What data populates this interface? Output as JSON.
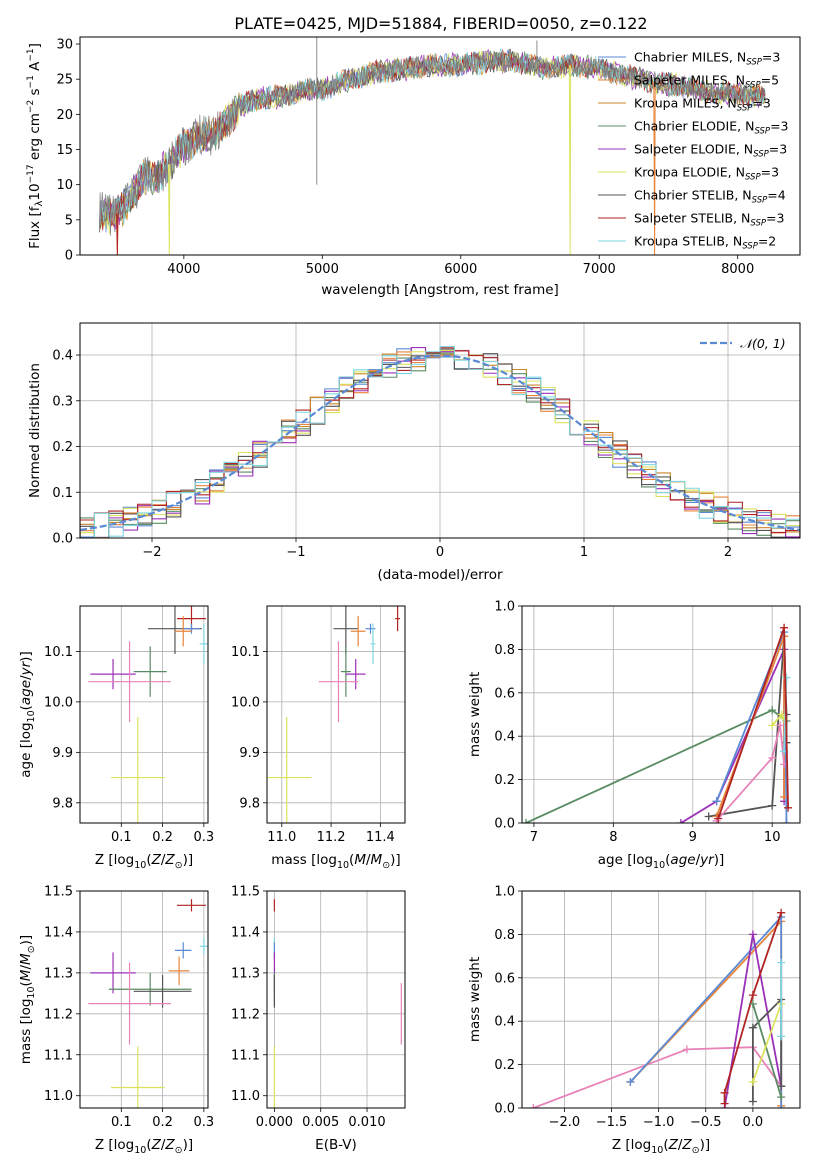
{
  "title": "PLATE=0425, MJD=51884, FIBERID=0050, z=0.122",
  "colors": {
    "Chabrier MILES": "#5b8ad4",
    "Salpeter MILES": "#e8843a",
    "Kroupa MILES": "#c9882a",
    "Chabrier ELODIE": "#5a8c63",
    "Salpeter ELODIE": "#9b30b8",
    "Kroupa ELODIE": "#dbe35e",
    "Chabrier STELIB": "#555555",
    "Salpeter STELIB": "#b02424",
    "Kroupa STELIB": "#7fd6e0",
    "pink": "#e783b8",
    "normal": "#5b8ad4"
  },
  "chart_data": [
    {
      "id": "spectrum",
      "type": "line",
      "xlabel": "wavelength [Angstrom, rest frame]",
      "ylabel": "Flux [f",
      "xlim": [
        3250,
        8450
      ],
      "ylim": [
        0,
        31
      ],
      "xticks": [
        4000,
        5000,
        6000,
        7000,
        8000
      ],
      "yticks": [
        0,
        5,
        10,
        15,
        20,
        25,
        30
      ],
      "continuum": [
        [
          3400,
          6
        ],
        [
          3500,
          5.5
        ],
        [
          3600,
          7.5
        ],
        [
          3700,
          11
        ],
        [
          3800,
          11
        ],
        [
          3900,
          13
        ],
        [
          4000,
          15.5
        ],
        [
          4100,
          17
        ],
        [
          4200,
          17
        ],
        [
          4300,
          19
        ],
        [
          4400,
          21
        ],
        [
          4500,
          22
        ],
        [
          4600,
          22.5
        ],
        [
          4700,
          22.5
        ],
        [
          4800,
          23
        ],
        [
          4900,
          23.5
        ],
        [
          5000,
          23.5
        ],
        [
          5200,
          25
        ],
        [
          5400,
          26
        ],
        [
          5600,
          26.5
        ],
        [
          5800,
          27
        ],
        [
          6000,
          27
        ],
        [
          6200,
          27.5
        ],
        [
          6400,
          27.5
        ],
        [
          6600,
          26.5
        ],
        [
          6800,
          27
        ],
        [
          7000,
          26.5
        ],
        [
          7200,
          25.5
        ],
        [
          7400,
          24.5
        ],
        [
          7600,
          24
        ],
        [
          7800,
          23
        ],
        [
          8000,
          23
        ],
        [
          8200,
          22.5
        ]
      ],
      "spikes": [
        [
          4960,
          10,
          32
        ],
        [
          6550,
          26,
          30.5
        ]
      ],
      "series": [
        {
          "name": "Chabrier MILES",
          "nssp": "3"
        },
        {
          "name": "Salpeter MILES",
          "nssp": "5"
        },
        {
          "name": "Kroupa MILES",
          "nssp": "3"
        },
        {
          "name": "Chabrier ELODIE",
          "nssp": "3"
        },
        {
          "name": "Salpeter ELODIE",
          "nssp": "3"
        },
        {
          "name": "Kroupa ELODIE",
          "nssp": "3"
        },
        {
          "name": "Chabrier STELIB",
          "nssp": "4"
        },
        {
          "name": "Salpeter STELIB",
          "nssp": "3"
        },
        {
          "name": "Kroupa STELIB",
          "nssp": "2"
        }
      ],
      "drops": [
        {
          "series": "Salpeter MILES",
          "x": 3520
        },
        {
          "series": "Salpeter STELIB",
          "x": 3520
        },
        {
          "series": "Kroupa ELODIE",
          "x": 3895
        },
        {
          "series": "Kroupa ELODIE",
          "x": 6790
        },
        {
          "series": "Salpeter MILES",
          "x": 7400
        }
      ]
    },
    {
      "id": "residuals",
      "type": "histogram",
      "xlabel": "(data-model)/error",
      "ylabel": "Normed distribution",
      "xlim": [
        -2.5,
        2.5
      ],
      "ylim": [
        0,
        0.47
      ],
      "xticks": [
        -2,
        -1,
        0,
        1,
        2
      ],
      "xticklabels": [
        "−2",
        "−1",
        "0",
        "1",
        "2"
      ],
      "yticks": [
        0,
        0.1,
        0.2,
        0.3,
        0.4
      ],
      "yticklabels": [
        "0.0",
        "0.1",
        "0.2",
        "0.3",
        "0.4"
      ],
      "bin_width": 0.1,
      "normal_label": "𝒩(0, 1)",
      "normal_mean": 0,
      "normal_sigma": 1
    },
    {
      "id": "age-vs-Z",
      "type": "scatter",
      "xlabel": "Z [log",
      "ylabel": "age  [log",
      "xlim": [
        0.0,
        0.31
      ],
      "ylim": [
        9.76,
        10.19
      ],
      "xticks": [
        0.1,
        0.2,
        0.3
      ],
      "xticklabels": [
        "0.1",
        "0.2",
        "0.3"
      ],
      "yticks": [
        9.8,
        9.9,
        10.0,
        10.1
      ],
      "yticklabels": [
        "9.8",
        "9.9",
        "10.0",
        "10.1"
      ],
      "points": [
        {
          "series": "Salpeter STELIB",
          "x": 0.27,
          "y": 10.165,
          "xerr": 0.035,
          "yerr": 0.025
        },
        {
          "series": "Chabrier STELIB",
          "x": 0.23,
          "y": 10.145,
          "xerr": 0.065,
          "yerr": 0.05
        },
        {
          "series": "Chabrier MILES",
          "x": 0.27,
          "y": 10.145,
          "xerr": 0.02,
          "yerr": 0.01
        },
        {
          "series": "Salpeter MILES",
          "x": 0.25,
          "y": 10.14,
          "xerr": 0.02,
          "yerr": 0.03
        },
        {
          "series": "Kroupa STELIB",
          "x": 0.3,
          "y": 10.115,
          "xerr": 0.01,
          "yerr": 0.04
        },
        {
          "series": "Chabrier ELODIE",
          "x": 0.17,
          "y": 10.06,
          "xerr": 0.04,
          "yerr": 0.05
        },
        {
          "series": "Salpeter ELODIE",
          "x": 0.08,
          "y": 10.055,
          "xerr": 0.055,
          "yerr": 0.03
        },
        {
          "series": "pink",
          "x": 0.12,
          "y": 10.04,
          "xerr": 0.1,
          "yerr": 0.08
        },
        {
          "series": "Kroupa ELODIE",
          "x": 0.14,
          "y": 9.85,
          "xerr": 0.065,
          "yerr": 0.12
        }
      ]
    },
    {
      "id": "age-vs-mass",
      "type": "scatter",
      "xlabel": "mass [log",
      "ylabel": "",
      "xlim": [
        10.94,
        11.5
      ],
      "ylim": [
        9.76,
        10.19
      ],
      "xticks": [
        11.0,
        11.2,
        11.4
      ],
      "xticklabels": [
        "11.0",
        "11.2",
        "11.4"
      ],
      "yticks": [
        9.8,
        9.9,
        10.0,
        10.1
      ],
      "yticklabels": [
        "9.8",
        "9.9",
        "10.0",
        "10.1"
      ],
      "points": [
        {
          "series": "Salpeter STELIB",
          "x": 11.47,
          "y": 10.165,
          "xerr": 0.01,
          "yerr": 0.025
        },
        {
          "series": "Chabrier STELIB",
          "x": 11.26,
          "y": 10.145,
          "xerr": 0.05,
          "yerr": 0.05
        },
        {
          "series": "Chabrier MILES",
          "x": 11.36,
          "y": 10.145,
          "xerr": 0.02,
          "yerr": 0.01
        },
        {
          "series": "Salpeter MILES",
          "x": 11.31,
          "y": 10.14,
          "xerr": 0.03,
          "yerr": 0.03
        },
        {
          "series": "Kroupa STELIB",
          "x": 11.37,
          "y": 10.115,
          "xerr": 0.01,
          "yerr": 0.04
        },
        {
          "series": "Chabrier ELODIE",
          "x": 11.26,
          "y": 10.06,
          "xerr": 0.02,
          "yerr": 0.05
        },
        {
          "series": "Salpeter ELODIE",
          "x": 11.3,
          "y": 10.055,
          "xerr": 0.04,
          "yerr": 0.03
        },
        {
          "series": "pink",
          "x": 11.23,
          "y": 10.04,
          "xerr": 0.08,
          "yerr": 0.08
        },
        {
          "series": "Kroupa ELODIE",
          "x": 11.02,
          "y": 9.85,
          "xerr": 0.1,
          "yerr": 0.12
        }
      ]
    },
    {
      "id": "mass-weight-vs-age",
      "type": "line",
      "xlabel": "age  [log",
      "ylabel": "mass weight",
      "xlim": [
        6.85,
        10.35
      ],
      "ylim": [
        0,
        1.0
      ],
      "xticks": [
        7,
        8,
        9,
        10
      ],
      "xticklabels": [
        "7",
        "8",
        "9",
        "10"
      ],
      "yticks": [
        0,
        0.2,
        0.4,
        0.6,
        0.8,
        1.0
      ],
      "yticklabels": [
        "0.0",
        "0.2",
        "0.4",
        "0.6",
        "0.8",
        "1.0"
      ],
      "series": [
        {
          "name": "Chabrier ELODIE",
          "points": [
            [
              6.9,
              0.0
            ],
            [
              10.0,
              0.52
            ],
            [
              10.18,
              0.47
            ]
          ]
        },
        {
          "name": "Salpeter ELODIE",
          "points": [
            [
              8.85,
              0.0
            ],
            [
              9.3,
              0.1
            ],
            [
              10.15,
              0.8
            ],
            [
              10.15,
              0.1
            ]
          ]
        },
        {
          "name": "Chabrier STELIB",
          "points": [
            [
              9.2,
              0.03
            ],
            [
              10.0,
              0.08
            ],
            [
              10.15,
              0.86
            ],
            [
              10.18,
              0.5
            ],
            [
              10.18,
              0.37
            ]
          ]
        },
        {
          "name": "Chabrier MILES",
          "points": [
            [
              9.3,
              0.1
            ],
            [
              10.15,
              0.88
            ],
            [
              10.18,
              0.0
            ]
          ]
        },
        {
          "name": "Salpeter MILES",
          "points": [
            [
              9.3,
              0.03
            ],
            [
              10.15,
              0.86
            ],
            [
              10.15,
              0.12
            ]
          ]
        },
        {
          "name": "pink",
          "points": [
            [
              9.3,
              0.01
            ],
            [
              10.0,
              0.3
            ],
            [
              10.1,
              0.45
            ],
            [
              10.15,
              0.27
            ]
          ]
        },
        {
          "name": "Kroupa ELODIE",
          "points": [
            [
              10.0,
              0.45
            ],
            [
              10.12,
              0.5
            ],
            [
              10.15,
              0.48
            ]
          ]
        },
        {
          "name": "Kroupa STELIB",
          "points": [
            [
              10.15,
              0.33
            ],
            [
              10.18,
              0.67
            ]
          ]
        },
        {
          "name": "Salpeter STELIB",
          "points": [
            [
              9.32,
              0.02
            ],
            [
              10.15,
              0.9
            ],
            [
              10.2,
              0.07
            ]
          ]
        }
      ]
    },
    {
      "id": "mass-vs-Z",
      "type": "scatter",
      "xlabel": "Z [log",
      "ylabel": "mass [log",
      "xlim": [
        0.0,
        0.31
      ],
      "ylim": [
        10.97,
        11.5
      ],
      "xticks": [
        0.1,
        0.2,
        0.3
      ],
      "xticklabels": [
        "0.1",
        "0.2",
        "0.3"
      ],
      "yticks": [
        11.0,
        11.1,
        11.2,
        11.3,
        11.4,
        11.5
      ],
      "yticklabels": [
        "11.0",
        "11.1",
        "11.2",
        "11.3",
        "11.4",
        "11.5"
      ],
      "points": [
        {
          "series": "Salpeter STELIB",
          "x": 0.27,
          "y": 11.465,
          "xerr": 0.035,
          "yerr": 0.015
        },
        {
          "series": "Chabrier MILES",
          "x": 0.25,
          "y": 11.355,
          "xerr": 0.02,
          "yerr": 0.02
        },
        {
          "series": "Kroupa STELIB",
          "x": 0.3,
          "y": 11.365,
          "xerr": 0.01,
          "yerr": 0.02
        },
        {
          "series": "Salpeter MILES",
          "x": 0.24,
          "y": 11.305,
          "xerr": 0.025,
          "yerr": 0.035
        },
        {
          "series": "Salpeter ELODIE",
          "x": 0.08,
          "y": 11.3,
          "xerr": 0.055,
          "yerr": 0.05
        },
        {
          "series": "Chabrier ELODIE",
          "x": 0.17,
          "y": 11.26,
          "xerr": 0.1,
          "yerr": 0.04
        },
        {
          "series": "Chabrier STELIB",
          "x": 0.2,
          "y": 11.255,
          "xerr": 0.07,
          "yerr": 0.04
        },
        {
          "series": "pink",
          "x": 0.12,
          "y": 11.225,
          "xerr": 0.1,
          "yerr": 0.1
        },
        {
          "series": "Kroupa ELODIE",
          "x": 0.14,
          "y": 11.02,
          "xerr": 0.065,
          "yerr": 0.1
        }
      ]
    },
    {
      "id": "mass-vs-EBV",
      "type": "scatter",
      "xlabel": "E(B-V)",
      "ylabel": "",
      "xlim": [
        -0.0008,
        0.0141
      ],
      "ylim": [
        10.97,
        11.5
      ],
      "xticks": [
        0.0,
        0.005,
        0.01
      ],
      "xticklabels": [
        "0.000",
        "0.005",
        "0.010"
      ],
      "yticks": [
        11.0,
        11.1,
        11.2,
        11.3,
        11.4,
        11.5
      ],
      "yticklabels": [
        "11.0",
        "11.1",
        "11.2",
        "11.3",
        "11.4",
        "11.5"
      ],
      "points": [
        {
          "series": "Salpeter STELIB",
          "x": 0.0,
          "y": 11.465,
          "xerr": 0,
          "yerr": 0.015
        },
        {
          "series": "Kroupa STELIB",
          "x": 0.0,
          "y": 11.365,
          "xerr": 0,
          "yerr": 0.02
        },
        {
          "series": "Chabrier MILES",
          "x": 0.0,
          "y": 11.355,
          "xerr": 0,
          "yerr": 0.02
        },
        {
          "series": "Salpeter ELODIE",
          "x": 0.0,
          "y": 11.3,
          "xerr": 0,
          "yerr": 0.05
        },
        {
          "series": "Chabrier ELODIE",
          "x": 0.0,
          "y": 11.26,
          "xerr": 0,
          "yerr": 0.04
        },
        {
          "series": "Chabrier STELIB",
          "x": 0.0,
          "y": 11.255,
          "xerr": 0,
          "yerr": 0.04
        },
        {
          "series": "Kroupa ELODIE",
          "x": 0.0,
          "y": 11.02,
          "xerr": 0,
          "yerr": 0.1
        },
        {
          "series": "pink",
          "x": 0.0137,
          "y": 11.2,
          "xerr": 0,
          "yerr": 0.075
        }
      ]
    },
    {
      "id": "mass-weight-vs-Z",
      "type": "line",
      "xlabel": "Z [log",
      "ylabel": "mass weight",
      "xlim": [
        -2.45,
        0.5
      ],
      "ylim": [
        0,
        1.0
      ],
      "xticks": [
        -2.0,
        -1.5,
        -1.0,
        -0.5,
        0.0
      ],
      "xticklabels": [
        "−2.0",
        "−1.5",
        "−1.0",
        "−0.5",
        "0.0"
      ],
      "yticks": [
        0,
        0.2,
        0.4,
        0.6,
        0.8,
        1.0
      ],
      "yticklabels": [
        "0.0",
        "0.2",
        "0.4",
        "0.6",
        "0.8",
        "1.0"
      ],
      "series": [
        {
          "name": "pink",
          "points": [
            [
              -2.33,
              0.0
            ],
            [
              -0.7,
              0.27
            ],
            [
              0.0,
              0.28
            ],
            [
              0.3,
              0.1
            ]
          ]
        },
        {
          "name": "Salpeter MILES",
          "points": [
            [
              -1.3,
              0.12
            ],
            [
              0.3,
              0.86
            ],
            [
              0.3,
              0.01
            ]
          ]
        },
        {
          "name": "Chabrier MILES",
          "points": [
            [
              -1.3,
              0.12
            ],
            [
              0.3,
              0.88
            ],
            [
              0.3,
              0.0
            ]
          ]
        },
        {
          "name": "Salpeter ELODIE",
          "points": [
            [
              -0.3,
              0.0
            ],
            [
              0.0,
              0.8
            ],
            [
              0.3,
              0.1
            ]
          ]
        },
        {
          "name": "Salpeter STELIB",
          "points": [
            [
              -0.3,
              0.02
            ],
            [
              -0.3,
              0.07
            ],
            [
              0.0,
              0.52
            ],
            [
              0.3,
              0.9
            ]
          ]
        },
        {
          "name": "Chabrier STELIB",
          "points": [
            [
              0.0,
              0.03
            ],
            [
              0.0,
              0.37
            ],
            [
              0.3,
              0.5
            ],
            [
              0.3,
              0.1
            ]
          ]
        },
        {
          "name": "Chabrier ELODIE",
          "points": [
            [
              0.0,
              0.48
            ],
            [
              0.3,
              0.05
            ]
          ]
        },
        {
          "name": "Kroupa ELODIE",
          "points": [
            [
              0.0,
              0.12
            ],
            [
              0.3,
              0.48
            ]
          ]
        },
        {
          "name": "Kroupa STELIB",
          "points": [
            [
              0.3,
              0.33
            ],
            [
              0.3,
              0.67
            ]
          ]
        }
      ]
    }
  ]
}
